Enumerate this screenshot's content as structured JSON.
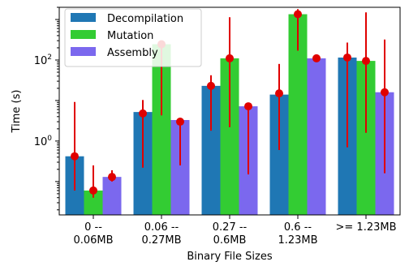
{
  "chart_data": {
    "type": "bar",
    "title": "",
    "xlabel": "Binary File Sizes",
    "ylabel": "Time (s)",
    "yscale": "log",
    "ylim": [
      0.015,
      2000
    ],
    "y_ticks": [
      {
        "value": 1,
        "label": "10^0"
      },
      {
        "value": 100,
        "label": "10^2"
      }
    ],
    "grid": false,
    "legend_position": "top-left",
    "categories": [
      [
        "0 --",
        "0.06MB"
      ],
      [
        "0.06 --",
        "0.27MB"
      ],
      [
        "0.27 --",
        "0.6MB"
      ],
      [
        "0.6 --",
        "1.23MB"
      ],
      [
        ">= 1.23MB"
      ]
    ],
    "series": [
      {
        "name": "Decompilation",
        "color": "#1f77b4",
        "values": [
          0.42,
          5.2,
          23,
          14,
          115
        ],
        "error_low": [
          0.06,
          0.22,
          1.8,
          0.6,
          0.7
        ],
        "error_high": [
          9.2,
          10.3,
          42,
          80,
          270
        ],
        "marker_values": [
          0.42,
          4.8,
          23,
          15,
          115
        ]
      },
      {
        "name": "Mutation",
        "color": "#33cc33",
        "values": [
          0.06,
          245,
          110,
          1350,
          95
        ],
        "error_low": [
          0.04,
          4.3,
          2.2,
          170,
          1.6
        ],
        "error_high": [
          0.25,
          300,
          1140,
          1800,
          1500
        ],
        "marker_values": [
          0.06,
          245,
          110,
          1350,
          95
        ]
      },
      {
        "name": "Assembly",
        "color": "#7b68ee",
        "values": [
          0.13,
          3.3,
          7.2,
          110,
          16
        ],
        "error_low": [
          0.1,
          0.25,
          0.15,
          95,
          0.16
        ],
        "error_high": [
          0.19,
          2.7,
          7.6,
          125,
          320
        ],
        "marker_values": [
          0.13,
          3.0,
          7.2,
          110,
          16
        ]
      }
    ]
  }
}
